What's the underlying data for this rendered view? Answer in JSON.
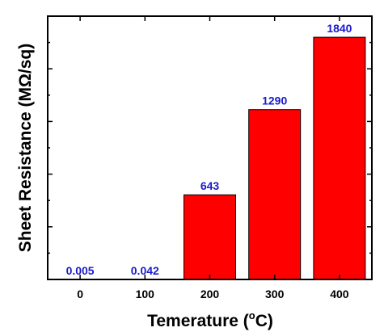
{
  "chart_data": {
    "type": "bar",
    "categories": [
      "0",
      "100",
      "200",
      "300",
      "400"
    ],
    "values": [
      0.005,
      0.042,
      643,
      1290,
      1840
    ],
    "data_labels": [
      "0.005",
      "0.042",
      "643",
      "1290",
      "1840"
    ],
    "title": "",
    "xlabel": "Temerature (",
    "xlabel_superscript": "o",
    "xlabel_suffix": "C)",
    "ylabel": "Sheet Resistance (MΩ/sq)",
    "ylim": [
      0,
      2000
    ],
    "y_ticks_labeled": false,
    "bar_color": "#ff0000",
    "bar_edge_color": "#000000",
    "label_color": "#1a1acc",
    "grid": false,
    "legend": "none"
  }
}
